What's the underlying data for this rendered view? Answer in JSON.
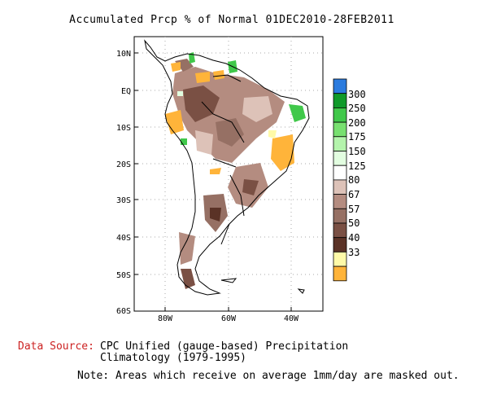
{
  "title": "Accumulated Prcp % of Normal 01DEC2010-28FEB2011",
  "lat_labels": [
    "10N",
    "EQ",
    "10S",
    "20S",
    "30S",
    "40S",
    "50S",
    "60S"
  ],
  "lon_labels": [
    "80W",
    "60W",
    "40W"
  ],
  "legend": {
    "colors": [
      "#2b7bde",
      "#109a2a",
      "#40c84a",
      "#78e070",
      "#b4f4ac",
      "#e2fde0",
      "#ffffff",
      "#ddc2b8",
      "#b48c80",
      "#967064",
      "#7a5044",
      "#5a3226",
      "#fffaa8",
      "#ffb43a"
    ],
    "labels": [
      "300",
      "250",
      "200",
      "175",
      "150",
      "125",
      "80",
      "67",
      "57",
      "50",
      "40",
      "33"
    ]
  },
  "footer": {
    "data_source_label": "Data Source:",
    "data_source_line1": "CPC Unified (gauge-based) Precipitation",
    "data_source_line2": "Climatology (1979-1995)",
    "note": "Note: Areas which receive on average 1mm/day are masked out."
  }
}
